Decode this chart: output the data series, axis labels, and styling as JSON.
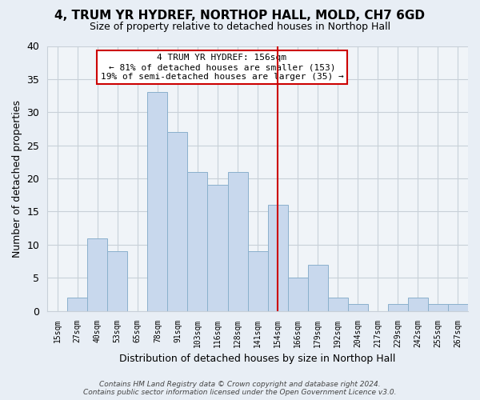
{
  "title": "4, TRUM YR HYDREF, NORTHOP HALL, MOLD, CH7 6GD",
  "subtitle": "Size of property relative to detached houses in Northop Hall",
  "xlabel": "Distribution of detached houses by size in Northop Hall",
  "ylabel": "Number of detached properties",
  "bin_labels": [
    "15sqm",
    "27sqm",
    "40sqm",
    "53sqm",
    "65sqm",
    "78sqm",
    "91sqm",
    "103sqm",
    "116sqm",
    "128sqm",
    "141sqm",
    "154sqm",
    "166sqm",
    "179sqm",
    "192sqm",
    "204sqm",
    "217sqm",
    "229sqm",
    "242sqm",
    "255sqm",
    "267sqm"
  ],
  "bar_values": [
    0,
    2,
    11,
    9,
    0,
    33,
    27,
    21,
    19,
    21,
    9,
    16,
    5,
    7,
    2,
    1,
    0,
    1,
    2,
    1,
    1
  ],
  "bar_color": "#c8d8ed",
  "bar_edge_color": "#8ab0cc",
  "vline_x_index": 11,
  "vline_color": "#cc0000",
  "ylim": [
    0,
    40
  ],
  "yticks": [
    0,
    5,
    10,
    15,
    20,
    25,
    30,
    35,
    40
  ],
  "annotation_title": "4 TRUM YR HYDREF: 156sqm",
  "annotation_line1": "← 81% of detached houses are smaller (153)",
  "annotation_line2": "19% of semi-detached houses are larger (35) →",
  "footer_line1": "Contains HM Land Registry data © Crown copyright and database right 2024.",
  "footer_line2": "Contains public sector information licensed under the Open Government Licence v3.0.",
  "fig_facecolor": "#e8eef5",
  "plot_facecolor": "#f0f4f8",
  "grid_color": "#c8d0d8"
}
